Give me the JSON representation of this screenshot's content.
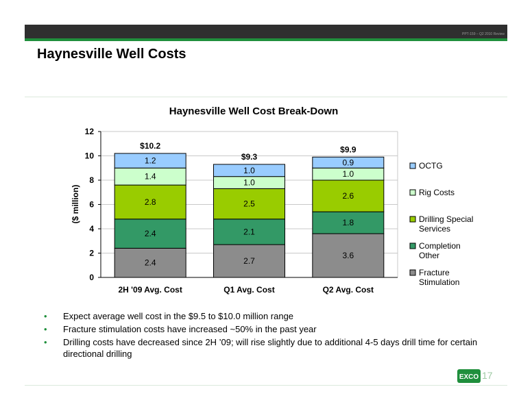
{
  "header": {
    "ref_code": "PPT-159 – Q2 2010 Review"
  },
  "slide_title": "Haynesville Well Costs",
  "chart_data": {
    "type": "bar",
    "stacked": true,
    "title": "Haynesville Well Cost Break-Down",
    "ylabel": "($ million)",
    "xlabel": "",
    "ylim": [
      0,
      12
    ],
    "yticks": [
      0,
      2,
      4,
      6,
      8,
      10,
      12
    ],
    "grid": true,
    "legend_position": "right",
    "categories": [
      "2H '09 Avg. Cost",
      "Q1 Avg. Cost",
      "Q2 Avg. Cost"
    ],
    "totals": [
      "$10.2",
      "$9.3",
      "$9.9"
    ],
    "series": [
      {
        "name": "Fracture Stimulation",
        "color": "#8c8c8c",
        "values": [
          2.4,
          2.7,
          3.6
        ],
        "labels": [
          "2.4",
          "2.7",
          "3.6"
        ]
      },
      {
        "name": "Completion Other",
        "color": "#339966",
        "values": [
          2.4,
          2.1,
          1.8
        ],
        "labels": [
          "2.4",
          "2.1",
          "1.8"
        ]
      },
      {
        "name": "Drilling Special Services",
        "color": "#99cc00",
        "values": [
          2.8,
          2.5,
          2.6
        ],
        "labels": [
          "2.8",
          "2.5",
          "2.6"
        ]
      },
      {
        "name": "Rig Costs",
        "color": "#ccffcc",
        "values": [
          1.4,
          1.0,
          1.0
        ],
        "labels": [
          "1.4",
          "1.0",
          "1.0"
        ]
      },
      {
        "name": "OCTG",
        "color": "#99ccff",
        "values": [
          1.2,
          1.0,
          0.9
        ],
        "labels": [
          "1.2",
          "1.0",
          "0.9"
        ]
      }
    ]
  },
  "bullets": [
    "Expect average well cost in the $9.5 to $10.0 million range",
    "Fracture stimulation costs have increased ~50% in the past year",
    "Drilling costs have decreased since 2H ’09; will rise slightly due to additional 4-5 days drill time for certain directional drilling"
  ],
  "bullet_glyph": "•",
  "logo": {
    "text": "EXCO",
    "color": "#1f8f3c"
  },
  "page_number": "17"
}
